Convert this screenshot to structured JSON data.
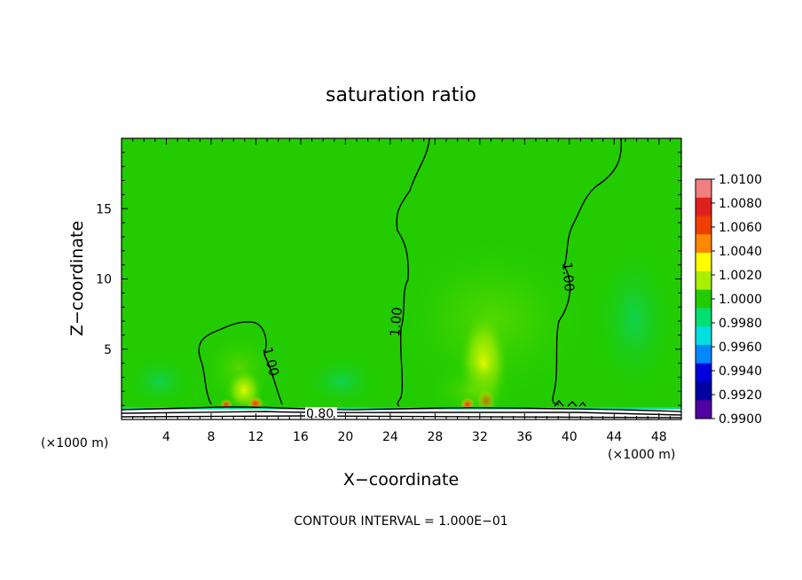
{
  "chart_data": {
    "type": "heatmap",
    "title": "saturation ratio",
    "xlabel": "X−coordinate",
    "ylabel": "Z−coordinate",
    "x_unit_label": "(×1000 m)",
    "y_unit_label": "(×1000 m)",
    "xlim": [
      0,
      50
    ],
    "ylim": [
      0,
      20
    ],
    "x_ticks": [
      "4",
      "8",
      "12",
      "16",
      "20",
      "24",
      "28",
      "32",
      "36",
      "40",
      "44",
      "48"
    ],
    "y_ticks": [
      "5",
      "10",
      "15"
    ],
    "footer": "CONTOUR INTERVAL = 1.000E−01",
    "contour_labels": [
      "1.00",
      "1.00",
      "1.00",
      "0.80"
    ],
    "colorbar": {
      "labels": [
        "1.0100",
        "1.0080",
        "1.0060",
        "1.0040",
        "1.0020",
        "1.0000",
        "0.9980",
        "0.9960",
        "0.9940",
        "0.9920",
        "0.9900"
      ],
      "colors": [
        "#f08080",
        "#e02020",
        "#f04000",
        "#ff8800",
        "#ffff00",
        "#aaee00",
        "#22cc00",
        "#00e070",
        "#00e0e0",
        "#0088ff",
        "#0000dd",
        "#0000a0",
        "#5000a0"
      ]
    },
    "background_color": "#22cc00"
  }
}
